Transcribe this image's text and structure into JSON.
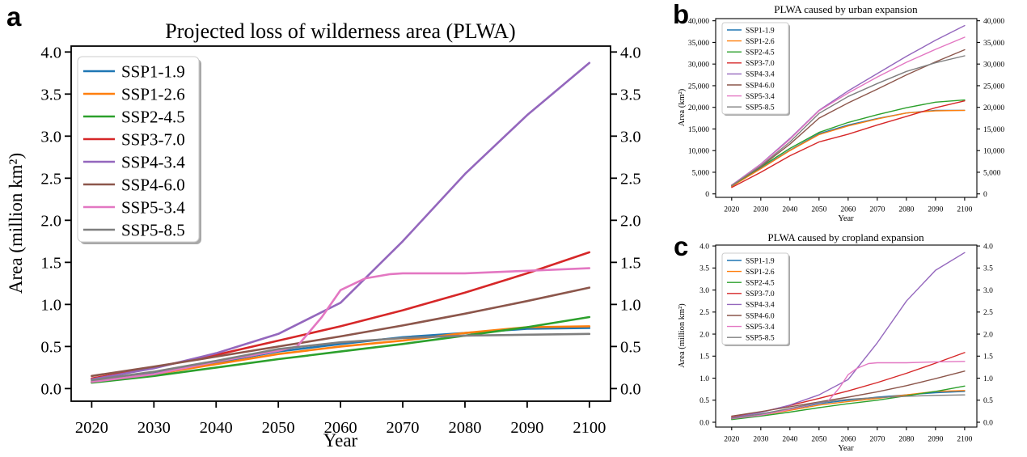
{
  "panel_labels": {
    "a": "a",
    "b": "b",
    "c": "c"
  },
  "chart_data": [
    {
      "id": "a",
      "type": "line",
      "title": "Projected loss of wilderness area (PLWA)",
      "xlabel": "Year",
      "ylabel": "Area (million km²)",
      "xlim": [
        2016.7,
        2103.4
      ],
      "ylim": [
        -0.15,
        4.07
      ],
      "xticks": [
        2020,
        2030,
        2040,
        2050,
        2060,
        2070,
        2080,
        2090,
        2100
      ],
      "yticks": [
        0.0,
        0.5,
        1.0,
        1.5,
        2.0,
        2.5,
        3.0,
        3.5,
        4.0
      ],
      "ytick_labels": [
        "0.0",
        "0.5",
        "1.0",
        "1.5",
        "2.0",
        "2.5",
        "3.0",
        "3.5",
        "4.0"
      ],
      "grid": false,
      "legend_position": "upper left",
      "x": [
        2020,
        2030,
        2040,
        2050,
        2060,
        2070,
        2080,
        2090,
        2100
      ],
      "series": [
        {
          "name": "SSP1-1.9",
          "color": "#1f77b4",
          "values": [
            0.08,
            0.18,
            0.31,
            0.44,
            0.53,
            0.61,
            0.66,
            0.71,
            0.72
          ]
        },
        {
          "name": "SSP1-2.6",
          "color": "#ff7f0e",
          "values": [
            0.08,
            0.17,
            0.29,
            0.41,
            0.5,
            0.57,
            0.66,
            0.73,
            0.74
          ]
        },
        {
          "name": "SSP2-4.5",
          "color": "#2ca02c",
          "values": [
            0.07,
            0.15,
            0.25,
            0.35,
            0.44,
            0.53,
            0.63,
            0.73,
            0.85
          ]
        },
        {
          "name": "SSP3-7.0",
          "color": "#d62728",
          "values": [
            0.12,
            0.25,
            0.4,
            0.57,
            0.74,
            0.93,
            1.14,
            1.37,
            1.62
          ]
        },
        {
          "name": "SSP4-3.4",
          "color": "#9467bd",
          "values": [
            0.11,
            0.24,
            0.42,
            0.65,
            1.02,
            1.75,
            2.55,
            3.25,
            3.87
          ]
        },
        {
          "name": "SSP4-6.0",
          "color": "#8c564b",
          "values": [
            0.15,
            0.26,
            0.38,
            0.5,
            0.62,
            0.75,
            0.89,
            1.04,
            1.2
          ]
        },
        {
          "name": "SSP5-3.4",
          "color": "#e377c2",
          "x": [
            2020,
            2030,
            2040,
            2050,
            2053,
            2057,
            2060,
            2064,
            2068,
            2070,
            2080,
            2090,
            2100
          ],
          "values": [
            0.08,
            0.17,
            0.32,
            0.45,
            0.5,
            0.85,
            1.17,
            1.31,
            1.36,
            1.37,
            1.37,
            1.4,
            1.43
          ]
        },
        {
          "name": "SSP5-8.5",
          "color": "#7f7f7f",
          "values": [
            0.1,
            0.2,
            0.33,
            0.47,
            0.55,
            0.6,
            0.63,
            0.64,
            0.65
          ]
        }
      ]
    },
    {
      "id": "b",
      "type": "line",
      "title": "PLWA caused by urban expansion",
      "xlabel": "Year",
      "ylabel": "Area (km²)",
      "xlim": [
        2014.5,
        2104.2
      ],
      "ylim": [
        -800,
        40500
      ],
      "xticks": [
        2020,
        2030,
        2040,
        2050,
        2060,
        2070,
        2080,
        2090,
        2100
      ],
      "yticks": [
        0,
        5000,
        10000,
        15000,
        20000,
        25000,
        30000,
        35000,
        40000
      ],
      "ytick_labels": [
        "0",
        "5,000",
        "10,000",
        "15,000",
        "20,000",
        "25,000",
        "30,000",
        "35,000",
        "40,000"
      ],
      "grid": false,
      "legend_position": "upper left",
      "x": [
        2020,
        2030,
        2040,
        2050,
        2060,
        2070,
        2080,
        2090,
        2100
      ],
      "series": [
        {
          "name": "SSP1-1.9",
          "color": "#1f77b4",
          "values": [
            1800,
            5900,
            10100,
            13900,
            15900,
            17400,
            18700,
            19300,
            19300
          ]
        },
        {
          "name": "SSP1-2.6",
          "color": "#ff7f0e",
          "values": [
            1750,
            5800,
            10000,
            13700,
            15700,
            17300,
            18700,
            19200,
            19300
          ]
        },
        {
          "name": "SSP2-4.5",
          "color": "#2ca02c",
          "values": [
            1900,
            6200,
            10500,
            14200,
            16500,
            18300,
            19900,
            21200,
            21700
          ]
        },
        {
          "name": "SSP3-7.0",
          "color": "#d62728",
          "values": [
            1500,
            5000,
            8800,
            12000,
            13800,
            15900,
            17900,
            19900,
            21500
          ]
        },
        {
          "name": "SSP4-3.4",
          "color": "#9467bd",
          "values": [
            2000,
            6900,
            12800,
            19300,
            23800,
            27800,
            31800,
            35500,
            38900
          ]
        },
        {
          "name": "SSP4-6.0",
          "color": "#8c564b",
          "values": [
            2000,
            6300,
            11500,
            17500,
            21000,
            24200,
            27500,
            30500,
            33300
          ]
        },
        {
          "name": "SSP5-3.4",
          "color": "#e377c2",
          "values": [
            1950,
            6800,
            12600,
            19200,
            23300,
            27000,
            30400,
            33400,
            36200
          ]
        },
        {
          "name": "SSP5-8.5",
          "color": "#7f7f7f",
          "values": [
            1900,
            6500,
            12000,
            18600,
            22500,
            25500,
            28300,
            30300,
            31900
          ]
        }
      ]
    },
    {
      "id": "c",
      "type": "line",
      "title": "PLWA caused by cropland expansion",
      "xlabel": "Year",
      "ylabel": "Area (million km²)",
      "xlim": [
        2014.5,
        2104.2
      ],
      "ylim": [
        -0.11,
        4.02
      ],
      "xticks": [
        2020,
        2030,
        2040,
        2050,
        2060,
        2070,
        2080,
        2090,
        2100
      ],
      "yticks": [
        0.0,
        0.5,
        1.0,
        1.5,
        2.0,
        2.5,
        3.0,
        3.5,
        4.0
      ],
      "ytick_labels": [
        "0.0",
        "0.5",
        "1.0",
        "1.5",
        "2.0",
        "2.5",
        "3.0",
        "3.5",
        "4.0"
      ],
      "grid": false,
      "legend_position": "upper left",
      "x": [
        2020,
        2030,
        2040,
        2050,
        2060,
        2070,
        2080,
        2090,
        2100
      ],
      "series": [
        {
          "name": "SSP1-1.9",
          "color": "#1f77b4",
          "values": [
            0.08,
            0.17,
            0.29,
            0.42,
            0.5,
            0.57,
            0.62,
            0.67,
            0.7
          ]
        },
        {
          "name": "SSP1-2.6",
          "color": "#ff7f0e",
          "values": [
            0.07,
            0.16,
            0.27,
            0.39,
            0.47,
            0.54,
            0.62,
            0.7,
            0.72
          ]
        },
        {
          "name": "SSP2-4.5",
          "color": "#2ca02c",
          "values": [
            0.06,
            0.14,
            0.23,
            0.33,
            0.42,
            0.5,
            0.6,
            0.7,
            0.82
          ]
        },
        {
          "name": "SSP3-7.0",
          "color": "#d62728",
          "values": [
            0.11,
            0.23,
            0.38,
            0.54,
            0.71,
            0.9,
            1.11,
            1.34,
            1.58
          ]
        },
        {
          "name": "SSP4-3.4",
          "color": "#9467bd",
          "values": [
            0.1,
            0.22,
            0.39,
            0.62,
            0.97,
            1.8,
            2.75,
            3.45,
            3.85
          ]
        },
        {
          "name": "SSP4-6.0",
          "color": "#8c564b",
          "values": [
            0.14,
            0.24,
            0.35,
            0.46,
            0.57,
            0.69,
            0.83,
            0.99,
            1.16
          ]
        },
        {
          "name": "SSP5-3.4",
          "color": "#e377c2",
          "x": [
            2020,
            2030,
            2040,
            2050,
            2053,
            2057,
            2060,
            2063,
            2067,
            2070,
            2080,
            2090,
            2100
          ],
          "values": [
            0.08,
            0.16,
            0.29,
            0.44,
            0.47,
            0.78,
            1.08,
            1.22,
            1.33,
            1.35,
            1.35,
            1.37,
            1.38
          ]
        },
        {
          "name": "SSP5-8.5",
          "color": "#7f7f7f",
          "values": [
            0.09,
            0.19,
            0.31,
            0.45,
            0.52,
            0.56,
            0.59,
            0.61,
            0.62
          ]
        }
      ]
    }
  ]
}
